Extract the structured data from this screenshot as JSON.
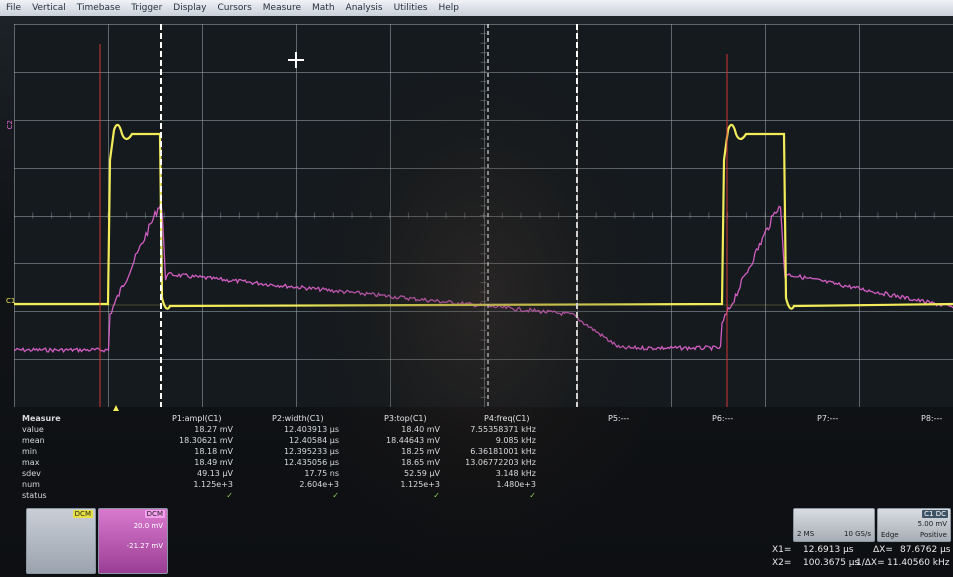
{
  "menu": [
    "File",
    "Vertical",
    "Timebase",
    "Trigger",
    "Display",
    "Cursors",
    "Measure",
    "Math",
    "Analysis",
    "Utilities",
    "Help"
  ],
  "colors": {
    "ch1": "#f2ec5a",
    "ch2": "#e565d3",
    "grid": "#9aa4aa",
    "cursor": "#ffffff",
    "trigger_marker": "#d63a3a"
  },
  "markers": {
    "ch1_level_tag": "C1",
    "ch2_level_tag": "C2"
  },
  "measure": {
    "row_labels": [
      "Measure",
      "value",
      "mean",
      "min",
      "max",
      "sdev",
      "num",
      "status"
    ],
    "params": [
      {
        "name": "P1:ampl(C1)",
        "values": [
          "18.27 mV",
          "18.30621 mV",
          "18.18 mV",
          "18.49 mV",
          "49.13 µV",
          "1.125e+3",
          "✓"
        ]
      },
      {
        "name": "P2:width(C1)",
        "values": [
          "12.403913 µs",
          "12.40584 µs",
          "12.395233 µs",
          "12.435056 µs",
          "17.75 ns",
          "2.604e+3",
          "✓"
        ]
      },
      {
        "name": "P3:top(C1)",
        "values": [
          "18.40 mV",
          "18.44643 mV",
          "18.25 mV",
          "18.65 mV",
          "52.59 µV",
          "1.125e+3",
          "✓"
        ]
      },
      {
        "name": "P4:freq(C1)",
        "values": [
          "7.55358371 kHz",
          "9.085 kHz",
          "6.36181001 kHz",
          "13.06772203 kHz",
          "3.148 kHz",
          "1.480e+3",
          "✓"
        ]
      }
    ],
    "empty_params": [
      "P5:---",
      "P6:---",
      "P7:---",
      "P8:---"
    ]
  },
  "channel_boxes": {
    "c1": {
      "tag": "DCM",
      "lines": [
        "",
        "",
        "",
        "",
        "",
        ""
      ]
    },
    "c2": {
      "tag": "DCM",
      "lines": [
        "20.0 mV",
        "",
        "-21.27 mV",
        "",
        "",
        ""
      ]
    }
  },
  "timebase_box": {
    "line1": "2 MS",
    "line2": "10 GS/s"
  },
  "trigger_box": {
    "tag": "C1 DC",
    "line1": "5.00 mV",
    "line2": "Edge",
    "line3": "Positive"
  },
  "cursors": {
    "x1_label": "X1=",
    "x1_value": "12.6913 µs",
    "x2_label": "X2=",
    "x2_value": "100.3675 µs",
    "dx_label": "ΔX=",
    "dx_value": "87.6762 µs",
    "inv_dx_label": "1/ΔX=",
    "inv_dx_value": "11.40560 kHz"
  }
}
